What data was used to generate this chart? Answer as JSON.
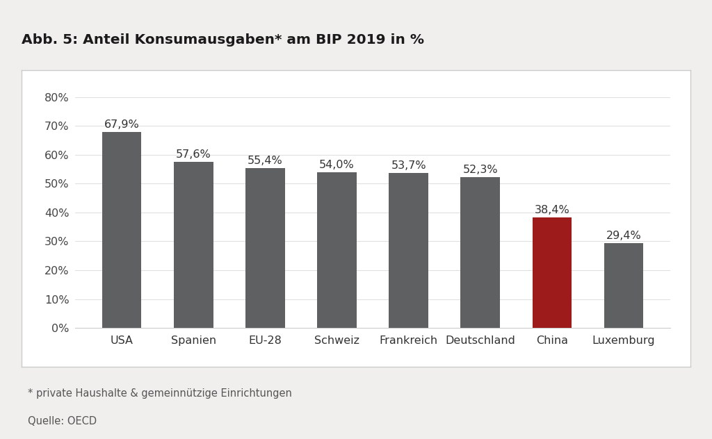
{
  "categories": [
    "USA",
    "Spanien",
    "EU-28",
    "Schweiz",
    "Frankreich",
    "Deutschland",
    "China",
    "Luxemburg"
  ],
  "values": [
    67.9,
    57.6,
    55.4,
    54.0,
    53.7,
    52.3,
    38.4,
    29.4
  ],
  "bar_colors": [
    "#5f6062",
    "#5f6062",
    "#5f6062",
    "#5f6062",
    "#5f6062",
    "#5f6062",
    "#9e1b1b",
    "#5f6062"
  ],
  "title": "Abb. 5: Anteil Konsumausgaben* am BIP 2019 in %",
  "title_color": "#1a1a1a",
  "top_line_color": "#c0392b",
  "ylim": [
    0,
    80
  ],
  "yticks": [
    0,
    10,
    20,
    30,
    40,
    50,
    60,
    70,
    80
  ],
  "footnote": "* private Haushalte & gemeinnützige Einrichtungen",
  "source": "Quelle: OECD",
  "page_background": "#f0efed",
  "chart_box_background": "#ffffff",
  "chart_box_border": "#cccccc",
  "bar_width": 0.55,
  "label_fontsize": 11.5,
  "tick_fontsize": 11.5,
  "title_fontsize": 14.5,
  "footnote_fontsize": 10.5,
  "grid_color": "#e0e0e0",
  "axis_label_color": "#444444",
  "text_color": "#333333"
}
